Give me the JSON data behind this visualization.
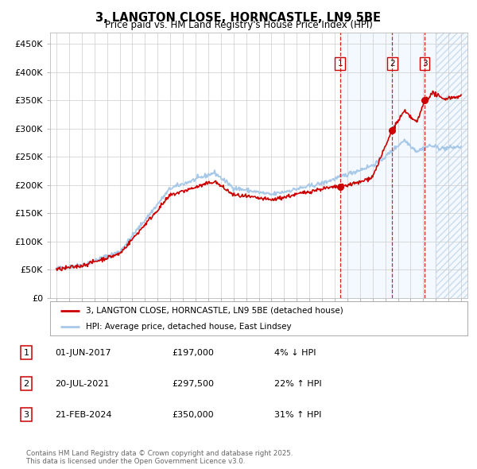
{
  "title_line1": "3, LANGTON CLOSE, HORNCASTLE, LN9 5BE",
  "title_line2": "Price paid vs. HM Land Registry's House Price Index (HPI)",
  "ylim": [
    0,
    470000
  ],
  "xlim_start": 1994.5,
  "xlim_end": 2027.5,
  "yticks": [
    0,
    50000,
    100000,
    150000,
    200000,
    250000,
    300000,
    350000,
    400000,
    450000
  ],
  "ytick_labels": [
    "£0",
    "£50K",
    "£100K",
    "£150K",
    "£200K",
    "£250K",
    "£300K",
    "£350K",
    "£400K",
    "£450K"
  ],
  "xticks": [
    1995,
    1996,
    1997,
    1998,
    1999,
    2000,
    2001,
    2002,
    2003,
    2004,
    2005,
    2006,
    2007,
    2008,
    2009,
    2010,
    2011,
    2012,
    2013,
    2014,
    2015,
    2016,
    2017,
    2018,
    2019,
    2020,
    2021,
    2022,
    2023,
    2024,
    2025,
    2026,
    2027
  ],
  "hpi_color": "#a8c8e8",
  "price_color": "#cc0000",
  "sale_dates": [
    2017.42,
    2021.55,
    2024.12
  ],
  "sale_prices": [
    197000,
    297500,
    350000
  ],
  "sale_labels": [
    "1",
    "2",
    "3"
  ],
  "vline_color": "#cc0000",
  "future_hatch_start": 2025.0,
  "legend_label_red": "3, LANGTON CLOSE, HORNCASTLE, LN9 5BE (detached house)",
  "legend_label_blue": "HPI: Average price, detached house, East Lindsey",
  "table_entries": [
    {
      "num": "1",
      "date": "01-JUN-2017",
      "price": "£197,000",
      "change": "4% ↓ HPI"
    },
    {
      "num": "2",
      "date": "20-JUL-2021",
      "price": "£297,500",
      "change": "22% ↑ HPI"
    },
    {
      "num": "3",
      "date": "21-FEB-2024",
      "price": "£350,000",
      "change": "31% ↑ HPI"
    }
  ],
  "footnote": "Contains HM Land Registry data © Crown copyright and database right 2025.\nThis data is licensed under the Open Government Licence v3.0.",
  "background_color": "#ffffff",
  "grid_color": "#cccccc"
}
